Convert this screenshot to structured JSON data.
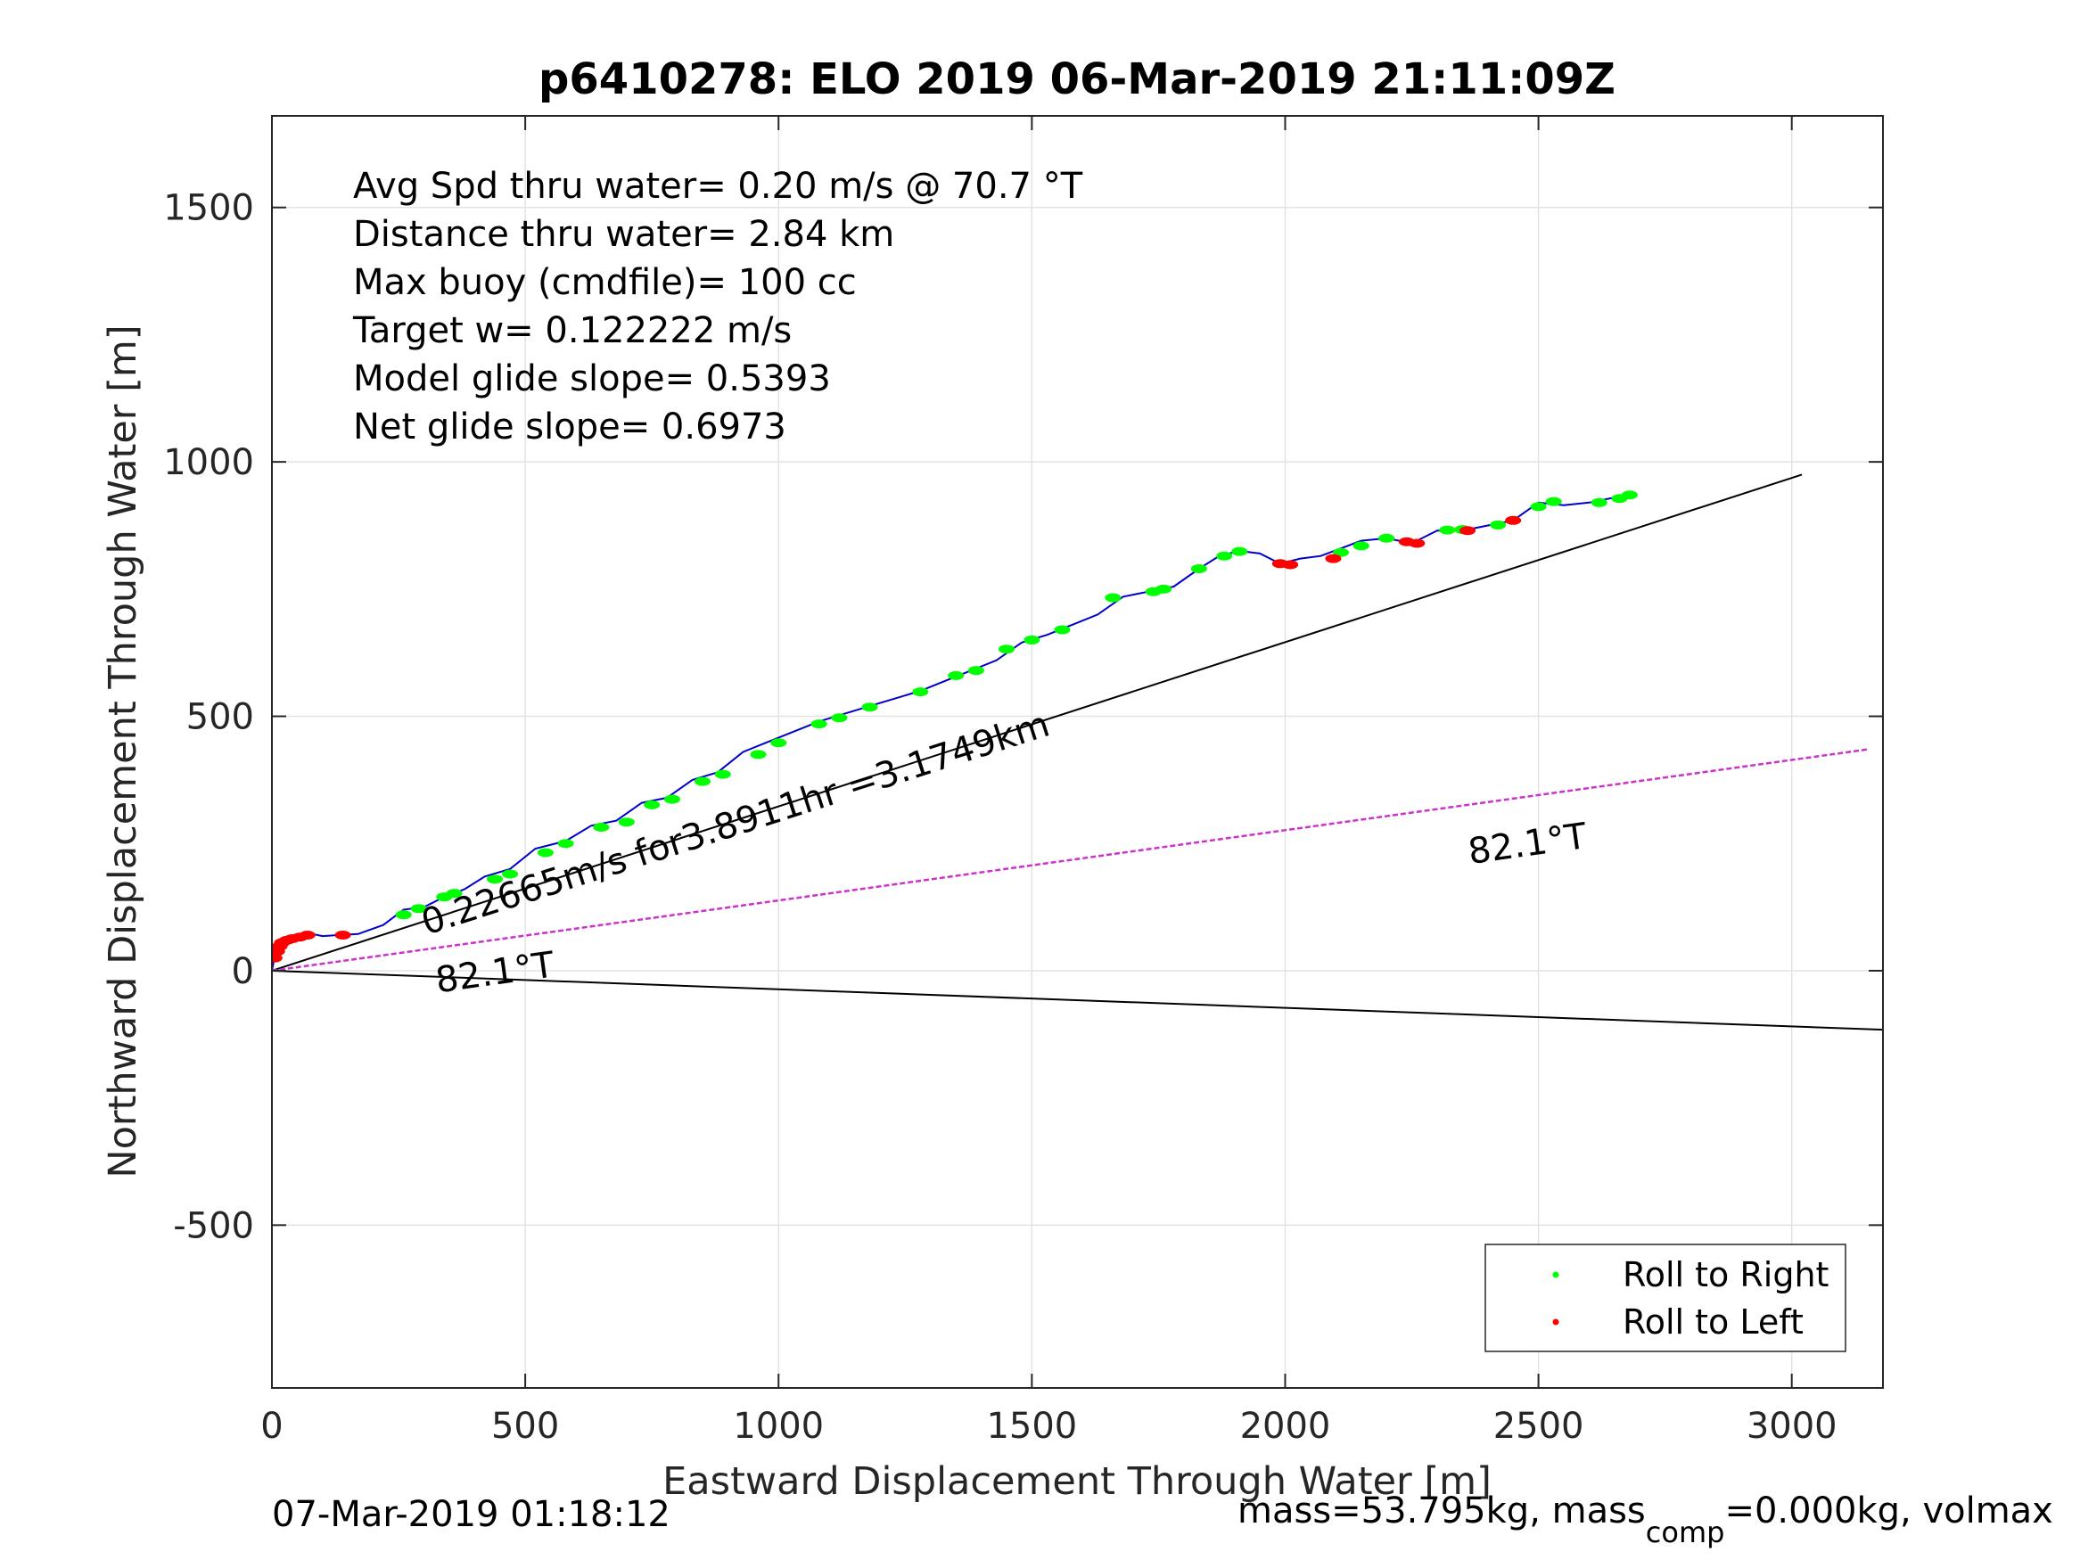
{
  "chart_data": {
    "type": "line",
    "title": "p6410278: ELO 2019 06-Mar-2019 21:11:09Z",
    "xlabel": "Eastward Displacement Through Water [m]",
    "ylabel": "Northward Displacement Through Water [m]",
    "xlim": [
      0,
      3180
    ],
    "ylim": [
      -820,
      1680
    ],
    "xticks": [
      0,
      500,
      1000,
      1500,
      2000,
      2500,
      3000
    ],
    "yticks": [
      -500,
      0,
      500,
      1000,
      1500
    ],
    "xtick_labels": [
      "0",
      "500",
      "1000",
      "1500",
      "2000",
      "2500",
      "3000"
    ],
    "ytick_labels": [
      "-500",
      "0",
      "500",
      "1000",
      "1500"
    ],
    "grid": true,
    "stats": [
      "Avg Spd thru water=  0.20 m/s @  70.7 °T",
      "Distance thru water=  2.84 km",
      "Max buoy (cmdfile)= 100 cc",
      "Target w= 0.122222 m/s",
      "Model glide slope= 0.5393",
      "Net glide slope= 0.6973"
    ],
    "reference_lines": [
      {
        "color": "#000000",
        "x": [
          0,
          3020
        ],
        "y": [
          0,
          975
        ]
      },
      {
        "color": "#000000",
        "x": [
          0,
          3180
        ],
        "y": [
          0,
          -116
        ]
      },
      {
        "color": "#cc33cc",
        "dashed": true,
        "x": [
          0,
          3150
        ],
        "y": [
          0,
          435
        ]
      }
    ],
    "annotations": [
      {
        "text": "0.22665m/s for3.8911hr =3.1749km",
        "x": 305,
        "y": 70,
        "angle": 17.8
      },
      {
        "text": "82.1°T",
        "x": 327,
        "y": -43,
        "angle": 7.9
      },
      {
        "text": "82.1°T",
        "x": 2365,
        "y": 210,
        "angle": 7.9
      }
    ],
    "track": {
      "color": "#0000cc",
      "x": [
        0,
        5,
        10,
        18,
        25,
        35,
        50,
        65,
        80,
        100,
        130,
        170,
        220,
        260,
        300,
        340,
        380,
        420,
        470,
        520,
        580,
        630,
        680,
        730,
        780,
        830,
        880,
        930,
        980,
        1030,
        1080,
        1130,
        1180,
        1230,
        1280,
        1330,
        1380,
        1430,
        1480,
        1530,
        1580,
        1630,
        1680,
        1730,
        1780,
        1830,
        1870,
        1910,
        1950,
        1990,
        2030,
        2070,
        2110,
        2150,
        2200,
        2250,
        2300,
        2350,
        2400,
        2450,
        2500,
        2550,
        2600,
        2650,
        2690
      ],
      "y": [
        0,
        25,
        45,
        55,
        62,
        65,
        68,
        70,
        72,
        68,
        70,
        72,
        90,
        120,
        125,
        145,
        160,
        185,
        200,
        240,
        255,
        285,
        295,
        330,
        340,
        375,
        390,
        430,
        450,
        470,
        490,
        505,
        520,
        535,
        550,
        570,
        590,
        610,
        645,
        660,
        680,
        700,
        735,
        745,
        755,
        790,
        815,
        825,
        820,
        800,
        810,
        815,
        830,
        845,
        850,
        840,
        865,
        865,
        875,
        885,
        920,
        915,
        920,
        930,
        938
      ]
    },
    "series": [
      {
        "name": "Roll to Right",
        "color": "#00ff00",
        "x": [
          260,
          290,
          340,
          360,
          440,
          470,
          540,
          580,
          650,
          700,
          750,
          790,
          850,
          890,
          960,
          1000,
          1080,
          1120,
          1180,
          1280,
          1350,
          1390,
          1450,
          1500,
          1560,
          1660,
          1740,
          1760,
          1830,
          1880,
          1910,
          2110,
          2150,
          2200,
          2320,
          2350,
          2420,
          2500,
          2530,
          2620,
          2660,
          2680
        ],
        "y": [
          110,
          122,
          145,
          152,
          180,
          190,
          232,
          250,
          282,
          292,
          326,
          337,
          372,
          386,
          425,
          448,
          485,
          497,
          518,
          548,
          580,
          590,
          632,
          650,
          670,
          733,
          745,
          750,
          790,
          815,
          824,
          822,
          835,
          850,
          866,
          867,
          876,
          912,
          922,
          920,
          928,
          935
        ]
      },
      {
        "name": "Roll to Left",
        "color": "#ff0000",
        "x": [
          5,
          10,
          15,
          20,
          30,
          40,
          55,
          70,
          140,
          1990,
          2010,
          2095,
          2240,
          2260,
          2360,
          2450
        ],
        "y": [
          25,
          38,
          48,
          55,
          60,
          63,
          66,
          70,
          70,
          800,
          798,
          810,
          843,
          840,
          865,
          885
        ]
      }
    ]
  },
  "footer": {
    "timestamp": "07-Mar-2019 01:18:12",
    "mass_prefix": "mass=53.795kg, mass",
    "mass_sub": "comp",
    "mass_suffix": "=0.000kg, volmax"
  }
}
